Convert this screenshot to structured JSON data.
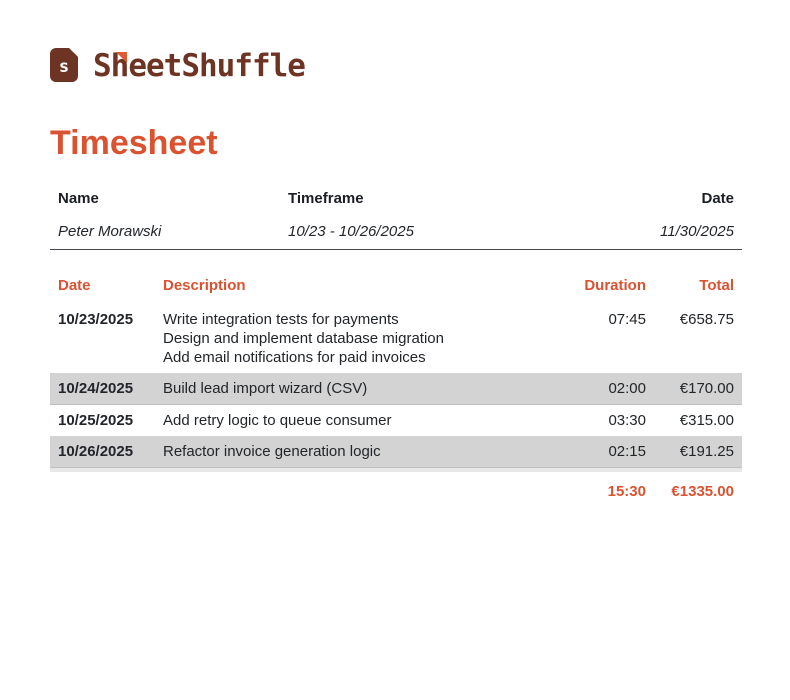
{
  "brand": {
    "name": "SheetShuffle",
    "icon_letter": "s",
    "icon_color": "#6E3423",
    "icon_fold_color": "#E05A30"
  },
  "title": "Timesheet",
  "colors": {
    "accent": "#DB5231",
    "brand": "#6E3423",
    "stripe": "#D3D3D3",
    "text": "#222529"
  },
  "info": {
    "name_label": "Name",
    "name_value": "Peter Morawski",
    "timeframe_label": "Timeframe",
    "timeframe_value": "10/23 - 10/26/2025",
    "date_label": "Date",
    "date_value": "11/30/2025"
  },
  "table": {
    "headers": {
      "date": "Date",
      "description": "Description",
      "duration": "Duration",
      "total": "Total"
    },
    "rows": [
      {
        "date": "10/23/2025",
        "description": [
          "Write integration tests for payments",
          "Design and implement database migration",
          "Add email notifications for paid invoices"
        ],
        "duration": "07:45",
        "total": "€658.75",
        "striped": false
      },
      {
        "date": "10/24/2025",
        "description": [
          "Build lead import wizard (CSV)"
        ],
        "duration": "02:00",
        "total": "€170.00",
        "striped": true
      },
      {
        "date": "10/25/2025",
        "description": [
          "Add retry logic to queue consumer"
        ],
        "duration": "03:30",
        "total": "€315.00",
        "striped": false
      },
      {
        "date": "10/26/2025",
        "description": [
          "Refactor invoice generation logic"
        ],
        "duration": "02:15",
        "total": "€191.25",
        "striped": true
      }
    ],
    "totals": {
      "duration": "15:30",
      "total": "€1335.00"
    }
  }
}
